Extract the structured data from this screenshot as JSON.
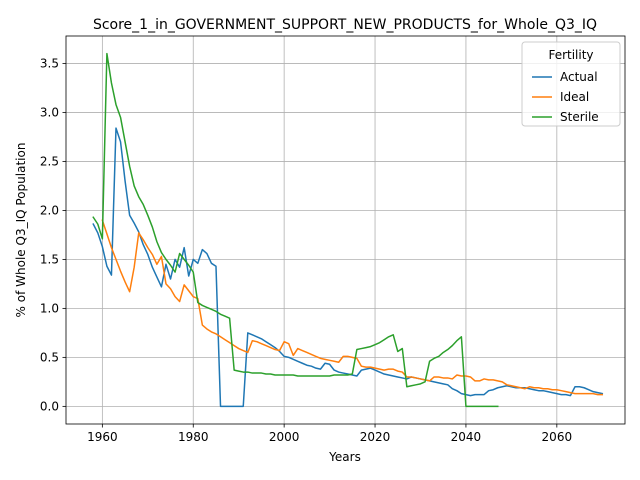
{
  "chart_data": {
    "type": "line",
    "title": "Score_1_in_GOVERNMENT_SUPPORT_NEW_PRODUCTS_for_Whole_Q3_IQ",
    "xlabel": "Years",
    "ylabel": "% of Whole Q3_IQ Population",
    "xlim": [
      1952,
      2075
    ],
    "ylim": [
      -0.18,
      3.78
    ],
    "xticks": [
      1960,
      1980,
      2000,
      2020,
      2040,
      2060
    ],
    "yticks": [
      0.0,
      0.5,
      1.0,
      1.5,
      2.0,
      2.5,
      3.0,
      3.5
    ],
    "ytick_labels": [
      "0.0",
      "0.5",
      "1.0",
      "1.5",
      "2.0",
      "2.5",
      "3.0",
      "3.5"
    ],
    "grid": true,
    "legend": {
      "title": "Fertility",
      "position": "top-right"
    },
    "series": [
      {
        "name": "Actual",
        "color": "#1f77b4",
        "x": [
          1958,
          1959,
          1960,
          1961,
          1962,
          1963,
          1964,
          1965,
          1966,
          1967,
          1968,
          1969,
          1970,
          1971,
          1972,
          1973,
          1974,
          1975,
          1976,
          1977,
          1978,
          1979,
          1980,
          1981,
          1982,
          1983,
          1984,
          1985,
          1986,
          1987,
          1988,
          1989,
          1990,
          1991,
          1992,
          1993,
          1994,
          1995,
          1996,
          1997,
          1998,
          1999,
          2000,
          2001,
          2002,
          2003,
          2004,
          2005,
          2006,
          2007,
          2008,
          2009,
          2010,
          2011,
          2012,
          2013,
          2014,
          2015,
          2016,
          2017,
          2018,
          2019,
          2020,
          2021,
          2022,
          2023,
          2024,
          2025,
          2026,
          2027,
          2028,
          2029,
          2030,
          2031,
          2032,
          2033,
          2034,
          2035,
          2036,
          2037,
          2038,
          2039,
          2040,
          2041,
          2042,
          2043,
          2044,
          2045,
          2046,
          2047,
          2048,
          2049,
          2050,
          2051,
          2052,
          2053,
          2054,
          2055,
          2056,
          2057,
          2058,
          2059,
          2060,
          2061,
          2062,
          2063,
          2064,
          2065,
          2066,
          2067,
          2068,
          2069,
          2070
        ],
        "values": [
          1.86,
          1.77,
          1.63,
          1.43,
          1.34,
          2.84,
          2.7,
          2.3,
          1.95,
          1.87,
          1.78,
          1.65,
          1.55,
          1.42,
          1.32,
          1.22,
          1.45,
          1.3,
          1.5,
          1.42,
          1.62,
          1.33,
          1.5,
          1.46,
          1.6,
          1.56,
          1.46,
          1.43,
          0.0,
          0.0,
          0.0,
          0.0,
          0.0,
          0.0,
          0.75,
          0.73,
          0.71,
          0.69,
          0.66,
          0.63,
          0.6,
          0.56,
          0.51,
          0.5,
          0.48,
          0.46,
          0.44,
          0.42,
          0.41,
          0.39,
          0.38,
          0.44,
          0.43,
          0.37,
          0.35,
          0.34,
          0.33,
          0.32,
          0.31,
          0.37,
          0.38,
          0.39,
          0.37,
          0.35,
          0.33,
          0.32,
          0.31,
          0.3,
          0.29,
          0.28,
          0.3,
          0.29,
          0.28,
          0.27,
          0.26,
          0.25,
          0.24,
          0.23,
          0.22,
          0.18,
          0.16,
          0.13,
          0.12,
          0.11,
          0.12,
          0.12,
          0.12,
          0.16,
          0.17,
          0.19,
          0.2,
          0.21,
          0.2,
          0.19,
          0.19,
          0.19,
          0.18,
          0.17,
          0.16,
          0.16,
          0.15,
          0.14,
          0.13,
          0.12,
          0.12,
          0.11,
          0.2,
          0.2,
          0.19,
          0.17,
          0.15,
          0.14,
          0.13
        ]
      },
      {
        "name": "Ideal",
        "color": "#ff7f0e",
        "x": [
          1960,
          1961,
          1962,
          1963,
          1964,
          1965,
          1966,
          1967,
          1968,
          1969,
          1970,
          1971,
          1972,
          1973,
          1974,
          1975,
          1976,
          1977,
          1978,
          1979,
          1980,
          1981,
          1982,
          1983,
          1984,
          1985,
          1986,
          1987,
          1988,
          1989,
          1990,
          1991,
          1992,
          1993,
          1994,
          1995,
          1996,
          1997,
          1998,
          1999,
          2000,
          2001,
          2002,
          2003,
          2004,
          2005,
          2006,
          2007,
          2008,
          2009,
          2010,
          2011,
          2012,
          2013,
          2014,
          2015,
          2016,
          2017,
          2018,
          2019,
          2020,
          2021,
          2022,
          2023,
          2024,
          2025,
          2026,
          2027,
          2028,
          2029,
          2030,
          2031,
          2032,
          2033,
          2034,
          2035,
          2036,
          2037,
          2038,
          2039,
          2040,
          2041,
          2042,
          2043,
          2044,
          2045,
          2046,
          2047,
          2048,
          2049,
          2050,
          2051,
          2052,
          2053,
          2054,
          2055,
          2056,
          2057,
          2058,
          2059,
          2060,
          2061,
          2062,
          2063,
          2064,
          2065,
          2066,
          2067,
          2068,
          2069,
          2070
        ],
        "values": [
          1.9,
          1.76,
          1.62,
          1.5,
          1.38,
          1.27,
          1.17,
          1.42,
          1.77,
          1.7,
          1.62,
          1.55,
          1.45,
          1.53,
          1.25,
          1.2,
          1.12,
          1.07,
          1.24,
          1.18,
          1.12,
          1.1,
          0.83,
          0.79,
          0.76,
          0.74,
          0.71,
          0.68,
          0.65,
          0.62,
          0.59,
          0.57,
          0.55,
          0.67,
          0.66,
          0.64,
          0.62,
          0.6,
          0.58,
          0.57,
          0.66,
          0.64,
          0.52,
          0.59,
          0.57,
          0.55,
          0.53,
          0.51,
          0.49,
          0.48,
          0.47,
          0.46,
          0.45,
          0.51,
          0.51,
          0.5,
          0.49,
          0.41,
          0.4,
          0.4,
          0.39,
          0.38,
          0.37,
          0.38,
          0.38,
          0.36,
          0.35,
          0.3,
          0.3,
          0.29,
          0.28,
          0.27,
          0.26,
          0.3,
          0.3,
          0.29,
          0.29,
          0.28,
          0.32,
          0.31,
          0.31,
          0.3,
          0.26,
          0.26,
          0.28,
          0.27,
          0.27,
          0.26,
          0.25,
          0.22,
          0.21,
          0.2,
          0.19,
          0.18,
          0.2,
          0.19,
          0.19,
          0.18,
          0.18,
          0.17,
          0.17,
          0.16,
          0.15,
          0.14,
          0.13,
          0.13,
          0.13,
          0.13,
          0.13,
          0.12,
          0.12
        ]
      },
      {
        "name": "Sterile",
        "color": "#2ca02c",
        "x": [
          1958,
          1959,
          1960,
          1961,
          1962,
          1963,
          1964,
          1965,
          1966,
          1967,
          1968,
          1969,
          1970,
          1971,
          1972,
          1973,
          1974,
          1975,
          1976,
          1977,
          1978,
          1979,
          1980,
          1981,
          1982,
          1983,
          1984,
          1985,
          1986,
          1987,
          1988,
          1989,
          1990,
          1991,
          1992,
          1993,
          1994,
          1995,
          1996,
          1997,
          1998,
          1999,
          2000,
          2001,
          2002,
          2003,
          2004,
          2005,
          2006,
          2007,
          2008,
          2009,
          2010,
          2011,
          2012,
          2013,
          2014,
          2015,
          2016,
          2017,
          2018,
          2019,
          2020,
          2021,
          2022,
          2023,
          2024,
          2025,
          2026,
          2027,
          2028,
          2029,
          2030,
          2031,
          2032,
          2033,
          2034,
          2035,
          2036,
          2037,
          2038,
          2039,
          2040,
          2041,
          2042,
          2043,
          2044,
          2045,
          2046,
          2047
        ],
        "values": [
          1.93,
          1.86,
          1.71,
          3.6,
          3.3,
          3.08,
          2.95,
          2.7,
          2.45,
          2.25,
          2.14,
          2.06,
          1.95,
          1.83,
          1.68,
          1.57,
          1.5,
          1.44,
          1.37,
          1.56,
          1.5,
          1.44,
          1.37,
          1.06,
          1.03,
          1.01,
          0.99,
          0.97,
          0.94,
          0.92,
          0.9,
          0.37,
          0.36,
          0.35,
          0.35,
          0.34,
          0.34,
          0.34,
          0.33,
          0.33,
          0.32,
          0.32,
          0.32,
          0.32,
          0.32,
          0.31,
          0.31,
          0.31,
          0.31,
          0.31,
          0.31,
          0.31,
          0.31,
          0.32,
          0.32,
          0.32,
          0.32,
          0.33,
          0.58,
          0.59,
          0.6,
          0.61,
          0.63,
          0.65,
          0.68,
          0.71,
          0.73,
          0.56,
          0.59,
          0.2,
          0.21,
          0.22,
          0.23,
          0.25,
          0.46,
          0.49,
          0.51,
          0.55,
          0.58,
          0.62,
          0.67,
          0.71,
          0.0,
          0.0,
          0.0,
          0.0,
          0.0,
          0.0,
          0.0,
          0.0
        ]
      }
    ]
  }
}
